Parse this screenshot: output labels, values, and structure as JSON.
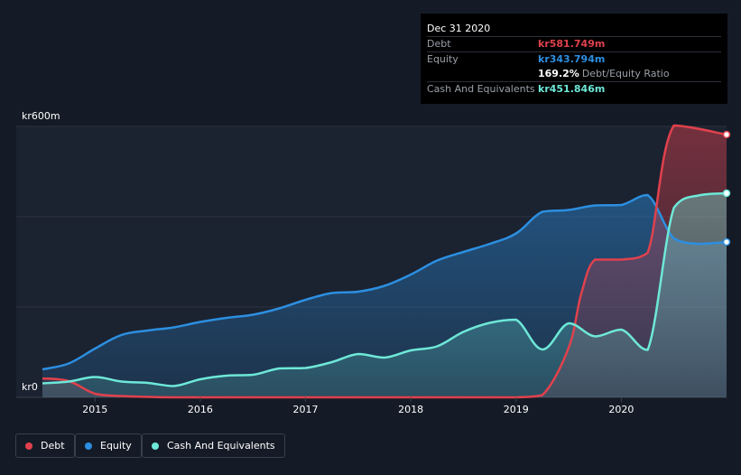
{
  "tooltip": {
    "date": "Dec 31 2020",
    "rows": [
      {
        "label": "Debt",
        "value": "kr581.749m",
        "color": "#e0414d"
      },
      {
        "label": "Equity",
        "value": "kr343.794m",
        "color": "#2c8fe0"
      },
      {
        "label": "",
        "value": "169.2%",
        "sub": "Debt/Equity Ratio",
        "color": "#ffffff"
      },
      {
        "label": "Cash And Equivalents",
        "value": "kr451.846m",
        "color": "#6ee8d8"
      }
    ]
  },
  "legend": [
    {
      "label": "Debt",
      "color": "#e0414d"
    },
    {
      "label": "Equity",
      "color": "#2c8fe0"
    },
    {
      "label": "Cash And Equivalents",
      "color": "#6ee8d8"
    }
  ],
  "chart_data": {
    "type": "area",
    "ylim": [
      0,
      600
    ],
    "xlim": [
      2014.5,
      2021.0
    ],
    "ytick_labels": [
      "kr0",
      "kr600m"
    ],
    "ytick_values": [
      0,
      600
    ],
    "grid": true,
    "xtick_labels": [
      "2015",
      "2016",
      "2017",
      "2018",
      "2019",
      "2020"
    ],
    "xtick_values": [
      2015,
      2016,
      2017,
      2018,
      2019,
      2020
    ],
    "legend_position": "bottom-left",
    "series": [
      {
        "name": "Debt",
        "color": "#e0414d",
        "x": [
          2014.5,
          2014.75,
          2015.0,
          2015.25,
          2015.5,
          2015.75,
          2016.0,
          2016.5,
          2017.0,
          2017.5,
          2018.0,
          2018.5,
          2018.75,
          2019.0,
          2019.25,
          2019.5,
          2019.62,
          2019.75,
          2020.0,
          2020.25,
          2020.5,
          2021.0
        ],
        "values": [
          42,
          36,
          8,
          3,
          1,
          0,
          0,
          0,
          0,
          0,
          0,
          0,
          0,
          0,
          5,
          110,
          230,
          305,
          305,
          320,
          602,
          582
        ]
      },
      {
        "name": "Equity",
        "color": "#2c8fe0",
        "x": [
          2014.5,
          2014.75,
          2015.0,
          2015.25,
          2015.5,
          2015.75,
          2016.0,
          2016.25,
          2016.5,
          2016.75,
          2017.0,
          2017.25,
          2017.5,
          2017.75,
          2018.0,
          2018.25,
          2018.5,
          2018.75,
          2019.0,
          2019.25,
          2019.5,
          2019.75,
          2020.0,
          2020.25,
          2020.5,
          2020.75,
          2021.0
        ],
        "values": [
          62,
          75,
          108,
          138,
          148,
          155,
          167,
          176,
          183,
          197,
          216,
          231,
          234,
          247,
          272,
          303,
          322,
          340,
          363,
          411,
          415,
          425,
          426,
          448,
          352,
          340,
          344
        ]
      },
      {
        "name": "Cash And Equivalents",
        "color": "#6ee8d8",
        "x": [
          2014.5,
          2014.75,
          2015.0,
          2015.25,
          2015.5,
          2015.75,
          2016.0,
          2016.25,
          2016.5,
          2016.75,
          2017.0,
          2017.25,
          2017.5,
          2017.75,
          2018.0,
          2018.25,
          2018.5,
          2018.75,
          2019.0,
          2019.25,
          2019.5,
          2019.75,
          2020.0,
          2020.25,
          2020.5,
          2020.75,
          2021.0
        ],
        "values": [
          31,
          35,
          45,
          35,
          32,
          25,
          40,
          48,
          50,
          64,
          65,
          78,
          96,
          88,
          104,
          113,
          145,
          165,
          172,
          106,
          164,
          135,
          150,
          105,
          420,
          448,
          452
        ]
      }
    ]
  }
}
